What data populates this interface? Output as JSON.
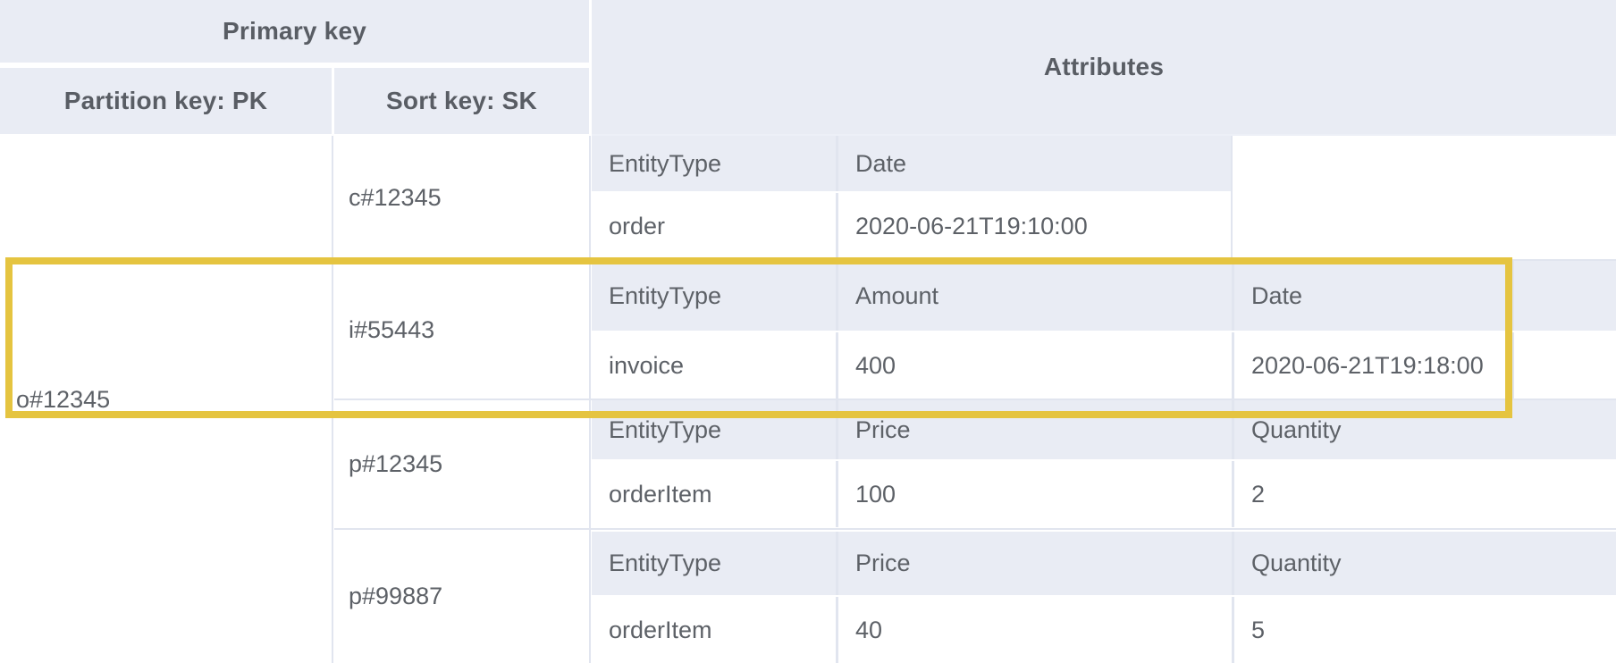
{
  "table": {
    "header": {
      "primary_key": "Primary key",
      "attributes": "Attributes",
      "partition_key": "Partition key: PK",
      "sort_key": "Sort key: SK"
    },
    "partition_value": "o#12345",
    "rows": [
      {
        "sk": "c#12345",
        "highlighted": false,
        "attributes": [
          {
            "key": "EntityType",
            "value": "order"
          },
          {
            "key": "Date",
            "value": "2020-06-21T19:10:00"
          }
        ]
      },
      {
        "sk": "i#55443",
        "highlighted": true,
        "attributes": [
          {
            "key": "EntityType",
            "value": "invoice"
          },
          {
            "key": "Amount",
            "value": "400"
          },
          {
            "key": "Date",
            "value": "2020-06-21T19:18:00"
          }
        ]
      },
      {
        "sk": "p#12345",
        "highlighted": false,
        "attributes": [
          {
            "key": "EntityType",
            "value": "orderItem"
          },
          {
            "key": "Price",
            "value": "100"
          },
          {
            "key": "Quantity",
            "value": "2"
          }
        ]
      },
      {
        "sk": "p#99887",
        "highlighted": false,
        "attributes": [
          {
            "key": "EntityType",
            "value": "orderItem"
          },
          {
            "key": "Price",
            "value": "40"
          },
          {
            "key": "Quantity",
            "value": "5"
          }
        ]
      }
    ],
    "colors": {
      "header_bg": "#e9ecf4",
      "grid_line": "#e1e5ef",
      "highlight_border": "#e5c440",
      "text": "#5d6167"
    }
  }
}
